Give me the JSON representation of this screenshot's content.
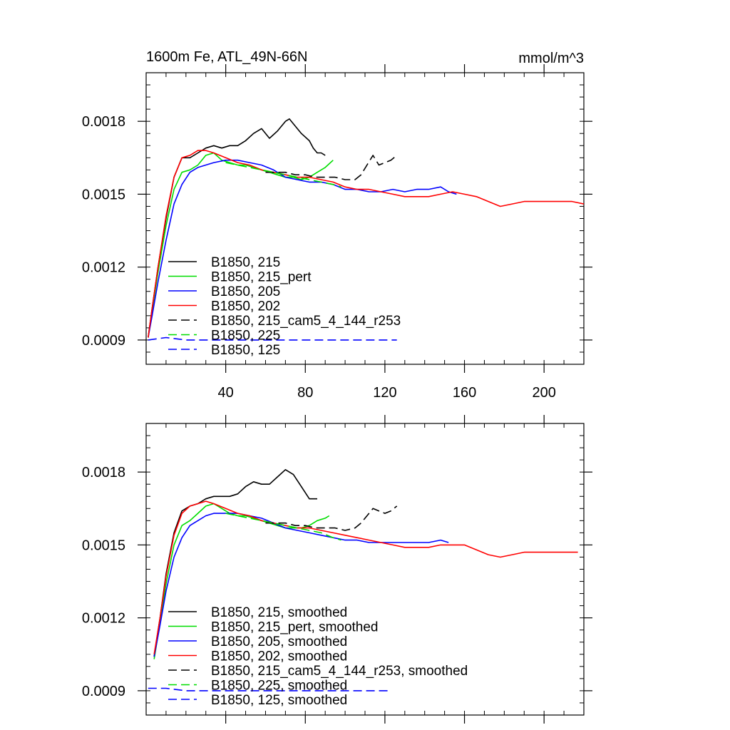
{
  "chart_data": [
    {
      "type": "line",
      "title": "1600m Fe, ATL_49N-66N",
      "units_label": "mmol/m^3",
      "xlim": [
        0,
        220
      ],
      "ylim": [
        0.0008,
        0.002
      ],
      "xticks": [
        40,
        80,
        120,
        160,
        200
      ],
      "xtick_labels": [
        "40",
        "80",
        "120",
        "160",
        "200"
      ],
      "yticks": [
        0.0009,
        0.0012,
        0.0015,
        0.0018
      ],
      "ytick_labels": [
        "0.0009",
        "0.0012",
        "0.0015",
        "0.0018"
      ],
      "legend_position": "lower-left",
      "series": [
        {
          "name": "B1850, 215",
          "color": "#000000",
          "dash": "solid",
          "x": [
            1,
            3,
            6,
            10,
            14,
            18,
            22,
            26,
            30,
            34,
            38,
            42,
            46,
            50,
            54,
            58,
            62,
            66,
            70,
            72,
            74,
            78,
            82,
            84,
            86,
            88,
            90
          ],
          "y": [
            0.00091,
            0.00103,
            0.0012,
            0.0014,
            0.00157,
            0.00165,
            0.00165,
            0.00167,
            0.00169,
            0.0017,
            0.00169,
            0.0017,
            0.0017,
            0.00172,
            0.00175,
            0.00177,
            0.00173,
            0.00176,
            0.0018,
            0.00181,
            0.00179,
            0.00175,
            0.00172,
            0.00169,
            0.00167,
            0.00167,
            0.00166
          ]
        },
        {
          "name": "B1850, 215_pert",
          "color": "#00dd00",
          "dash": "solid",
          "x": [
            1,
            3,
            6,
            10,
            14,
            18,
            22,
            26,
            30,
            34,
            38,
            42,
            46,
            50,
            54,
            58,
            62,
            66,
            70,
            74,
            78,
            82,
            86,
            90,
            94
          ],
          "y": [
            0.00091,
            0.00102,
            0.00118,
            0.00137,
            0.00152,
            0.00159,
            0.0016,
            0.00162,
            0.00166,
            0.00167,
            0.00164,
            0.00163,
            0.00162,
            0.00162,
            0.00161,
            0.0016,
            0.00159,
            0.00158,
            0.00157,
            0.00157,
            0.00156,
            0.00157,
            0.00159,
            0.00161,
            0.00164
          ]
        },
        {
          "name": "B1850, 205",
          "color": "#0000ff",
          "dash": "solid",
          "x": [
            1,
            3,
            6,
            10,
            14,
            18,
            22,
            26,
            30,
            34,
            40,
            46,
            52,
            58,
            64,
            70,
            76,
            82,
            88,
            94,
            100,
            106,
            112,
            118,
            124,
            130,
            136,
            142,
            148,
            152,
            156
          ],
          "y": [
            0.00091,
            0.001,
            0.00114,
            0.00131,
            0.00146,
            0.00154,
            0.00159,
            0.00161,
            0.00162,
            0.00163,
            0.00164,
            0.00164,
            0.00163,
            0.00162,
            0.0016,
            0.00157,
            0.00156,
            0.00155,
            0.00155,
            0.00154,
            0.00152,
            0.00152,
            0.00151,
            0.00151,
            0.00152,
            0.00151,
            0.00152,
            0.00152,
            0.00153,
            0.00151,
            0.0015
          ]
        },
        {
          "name": "B1850, 202",
          "color": "#ff0000",
          "dash": "solid",
          "x": [
            1,
            3,
            6,
            10,
            14,
            18,
            22,
            26,
            30,
            34,
            40,
            46,
            52,
            58,
            64,
            70,
            76,
            82,
            88,
            94,
            100,
            106,
            112,
            118,
            124,
            130,
            136,
            142,
            148,
            154,
            160,
            166,
            172,
            178,
            184,
            190,
            196,
            202,
            208,
            214,
            220
          ],
          "y": [
            0.00091,
            0.00103,
            0.0012,
            0.00141,
            0.00157,
            0.00165,
            0.00166,
            0.00168,
            0.00168,
            0.00167,
            0.00165,
            0.00163,
            0.00162,
            0.0016,
            0.00159,
            0.00158,
            0.00157,
            0.00157,
            0.00156,
            0.00155,
            0.00153,
            0.00152,
            0.00152,
            0.00151,
            0.0015,
            0.00149,
            0.00149,
            0.00149,
            0.0015,
            0.00151,
            0.0015,
            0.00149,
            0.00147,
            0.00145,
            0.00146,
            0.00147,
            0.00147,
            0.00147,
            0.00147,
            0.00147,
            0.00146
          ]
        },
        {
          "name": "B1850, 215_cam5_4_144_r253",
          "color": "#000000",
          "dash": "dashed",
          "x": [
            60,
            65,
            70,
            75,
            80,
            85,
            90,
            95,
            100,
            105,
            108,
            111,
            114,
            117,
            120,
            123,
            126
          ],
          "y": [
            0.00159,
            0.00159,
            0.00159,
            0.00158,
            0.00158,
            0.00157,
            0.00157,
            0.00157,
            0.00156,
            0.00156,
            0.00158,
            0.00162,
            0.00166,
            0.00162,
            0.00163,
            0.00164,
            0.00166
          ]
        },
        {
          "name": "B1850, 225",
          "color": "#00dd00",
          "dash": "dashed",
          "x": [
            40,
            46,
            52,
            58,
            64,
            70,
            76,
            82,
            88,
            94,
            98
          ],
          "y": [
            0.00163,
            0.00162,
            0.00161,
            0.0016,
            0.00159,
            0.00158,
            0.00157,
            0.00156,
            0.00155,
            0.00154,
            0.00153
          ]
        },
        {
          "name": "B1850, 125",
          "color": "#0000ff",
          "dash": "dashed",
          "x": [
            1,
            10,
            20,
            30,
            40,
            50,
            60,
            70,
            80,
            90,
            100,
            110,
            120,
            126
          ],
          "y": [
            0.0009,
            0.00091,
            0.0009,
            0.0009,
            0.0009,
            0.0009,
            0.0009,
            0.0009,
            0.0009,
            0.0009,
            0.0009,
            0.0009,
            0.0009,
            0.0009
          ]
        }
      ]
    },
    {
      "type": "line",
      "title": "",
      "xlim": [
        0,
        220
      ],
      "ylim": [
        0.0008,
        0.002
      ],
      "xticks": [
        40,
        80,
        120,
        160,
        200
      ],
      "xtick_labels": [],
      "yticks": [
        0.0009,
        0.0012,
        0.0015,
        0.0018
      ],
      "ytick_labels": [
        "0.0009",
        "0.0012",
        "0.0015",
        "0.0018"
      ],
      "legend_position": "lower-left",
      "series": [
        {
          "name": "B1850, 215, smoothed",
          "color": "#000000",
          "dash": "solid",
          "x": [
            4,
            7,
            10,
            14,
            18,
            22,
            26,
            30,
            34,
            38,
            42,
            46,
            50,
            54,
            58,
            62,
            66,
            70,
            72,
            74,
            78,
            82,
            86
          ],
          "y": [
            0.00104,
            0.0012,
            0.00138,
            0.00155,
            0.00164,
            0.00166,
            0.00167,
            0.00169,
            0.0017,
            0.0017,
            0.0017,
            0.00171,
            0.00174,
            0.00176,
            0.00175,
            0.00175,
            0.00178,
            0.00181,
            0.0018,
            0.00179,
            0.00174,
            0.00169,
            0.00169
          ]
        },
        {
          "name": "B1850, 215_pert, smoothed",
          "color": "#00dd00",
          "dash": "solid",
          "x": [
            4,
            7,
            10,
            14,
            18,
            22,
            26,
            30,
            34,
            38,
            42,
            46,
            50,
            54,
            58,
            62,
            66,
            70,
            74,
            78,
            82,
            86,
            90,
            92
          ],
          "y": [
            0.00103,
            0.00118,
            0.00134,
            0.0015,
            0.00158,
            0.0016,
            0.00163,
            0.00166,
            0.00167,
            0.00165,
            0.00163,
            0.00162,
            0.00162,
            0.00161,
            0.0016,
            0.00159,
            0.00158,
            0.00157,
            0.00157,
            0.00157,
            0.00158,
            0.0016,
            0.00161,
            0.00162
          ]
        },
        {
          "name": "B1850, 205, smoothed",
          "color": "#0000ff",
          "dash": "solid",
          "x": [
            4,
            7,
            10,
            14,
            18,
            22,
            26,
            30,
            34,
            40,
            46,
            52,
            58,
            64,
            70,
            76,
            82,
            88,
            94,
            100,
            106,
            112,
            118,
            124,
            130,
            136,
            142,
            148,
            152
          ],
          "y": [
            0.00104,
            0.00117,
            0.00131,
            0.00145,
            0.00153,
            0.00158,
            0.0016,
            0.00162,
            0.00163,
            0.00163,
            0.00163,
            0.00162,
            0.00161,
            0.00159,
            0.00157,
            0.00156,
            0.00155,
            0.00154,
            0.00153,
            0.00152,
            0.00152,
            0.00151,
            0.00151,
            0.00151,
            0.00151,
            0.00151,
            0.00151,
            0.00152,
            0.00151
          ]
        },
        {
          "name": "B1850, 202, smoothed",
          "color": "#ff0000",
          "dash": "solid",
          "x": [
            4,
            7,
            10,
            14,
            18,
            22,
            26,
            30,
            34,
            40,
            46,
            52,
            58,
            64,
            70,
            76,
            82,
            88,
            94,
            100,
            106,
            112,
            118,
            124,
            130,
            136,
            142,
            148,
            154,
            160,
            166,
            172,
            178,
            184,
            190,
            196,
            202,
            208,
            214,
            217
          ],
          "y": [
            0.00105,
            0.0012,
            0.00137,
            0.00154,
            0.00163,
            0.00166,
            0.00167,
            0.00168,
            0.00167,
            0.00165,
            0.00163,
            0.00162,
            0.0016,
            0.00159,
            0.00158,
            0.00157,
            0.00157,
            0.00156,
            0.00155,
            0.00154,
            0.00153,
            0.00152,
            0.00151,
            0.0015,
            0.00149,
            0.00149,
            0.00149,
            0.0015,
            0.0015,
            0.0015,
            0.00148,
            0.00146,
            0.00145,
            0.00146,
            0.00147,
            0.00147,
            0.00147,
            0.00147,
            0.00147,
            0.00147
          ]
        },
        {
          "name": "B1850, 215_cam5_4_144_r253, smoothed",
          "color": "#000000",
          "dash": "dashed",
          "x": [
            60,
            65,
            70,
            75,
            80,
            85,
            90,
            95,
            100,
            105,
            108,
            111,
            114,
            117,
            120,
            123,
            126
          ],
          "y": [
            0.00159,
            0.00159,
            0.00159,
            0.00158,
            0.00158,
            0.00157,
            0.00157,
            0.00157,
            0.00156,
            0.00157,
            0.00159,
            0.00162,
            0.00165,
            0.00164,
            0.00163,
            0.00164,
            0.00166
          ]
        },
        {
          "name": "B1850, 225, smoothed",
          "color": "#00dd00",
          "dash": "dashed",
          "x": [
            40,
            46,
            52,
            58,
            64,
            70,
            76,
            82,
            88,
            94,
            98
          ],
          "y": [
            0.00163,
            0.00162,
            0.00161,
            0.0016,
            0.00159,
            0.00158,
            0.00157,
            0.00156,
            0.00155,
            0.00153,
            0.00152
          ]
        },
        {
          "name": "B1850, 125, smoothed",
          "color": "#0000ff",
          "dash": "dashed",
          "x": [
            1,
            10,
            20,
            30,
            40,
            50,
            60,
            70,
            80,
            90,
            100,
            110,
            120,
            123
          ],
          "y": [
            0.00091,
            0.00091,
            0.0009,
            0.0009,
            0.0009,
            0.0009,
            0.0009,
            0.0009,
            0.0009,
            0.0009,
            0.0009,
            0.0009,
            0.0009,
            0.0009
          ]
        }
      ]
    }
  ]
}
